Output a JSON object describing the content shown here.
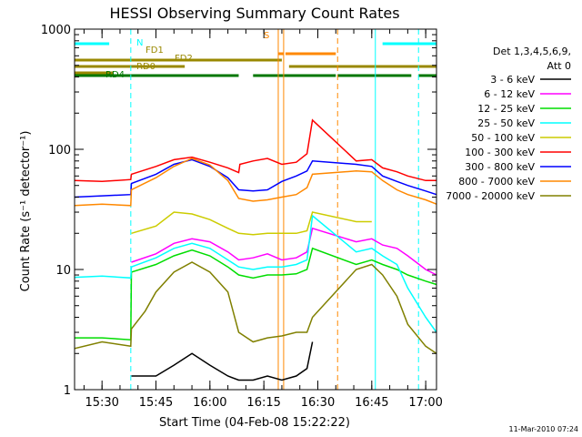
{
  "chart_data": {
    "type": "line",
    "title": "HESSI Observing Summary Count Rates",
    "xlabel": "Start Time (04-Feb-08 15:22:22)",
    "ylabel": "Count Rate (s⁻¹ detector⁻¹)",
    "ylim": [
      1,
      1000
    ],
    "yscale": "log",
    "xlim": [
      "15:22:22",
      "17:03:00"
    ],
    "x_ticks": [
      "15:30",
      "15:45",
      "16:00",
      "16:15",
      "16:30",
      "16:45",
      "17:00"
    ],
    "y_ticks": [
      "1",
      "10",
      "100",
      "1000"
    ],
    "footer_timestamp": "11-Mar-2010 07:24",
    "legend_header": [
      "Det 1,3,4,5,6,9,",
      "Att 0"
    ],
    "legend_placement": "right",
    "series": [
      {
        "name": "3 - 6 keV",
        "color": "#000000",
        "x": [
          "15:22:22",
          "15:38:00",
          "15:38:10",
          "15:45:00",
          "15:50:00",
          "15:55:00",
          "16:00:00",
          "16:05:00",
          "16:08:00",
          "16:12:00",
          "16:16:00",
          "16:20:00",
          "16:24:00",
          "16:27:00",
          "16:28:30",
          "16:40:40",
          "16:45:00",
          "16:48:00",
          "16:52:00",
          "16:55:00",
          "17:00:00",
          "17:03:00"
        ],
        "y": [
          null,
          null,
          1.3,
          1.3,
          1.6,
          2.0,
          1.6,
          1.3,
          1.2,
          1.2,
          1.3,
          1.2,
          1.3,
          1.5,
          2.5,
          null,
          null,
          null,
          null,
          null,
          null,
          null
        ]
      },
      {
        "name": "6 - 12 keV",
        "color": "#ff00ff",
        "x": [
          "15:22:22",
          "15:30:00",
          "15:38:00",
          "15:38:10",
          "15:45:00",
          "15:50:00",
          "15:55:00",
          "16:00:00",
          "16:05:00",
          "16:08:00",
          "16:12:00",
          "16:16:00",
          "16:20:00",
          "16:24:00",
          "16:27:00",
          "16:28:30",
          "16:40:40",
          "16:45:00",
          "16:48:00",
          "16:52:00",
          "16:55:00",
          "17:00:00",
          "17:03:00"
        ],
        "y": [
          null,
          null,
          null,
          11.5,
          13.5,
          16.5,
          18,
          17,
          14,
          12,
          12.5,
          13.5,
          12,
          12.5,
          14,
          22,
          17,
          18,
          16,
          15,
          13,
          10,
          9
        ]
      },
      {
        "name": "12 - 25 keV",
        "color": "#00dd00",
        "x": [
          "15:22:22",
          "15:30:00",
          "15:38:00",
          "15:38:10",
          "15:45:00",
          "15:50:00",
          "15:55:00",
          "16:00:00",
          "16:05:00",
          "16:08:00",
          "16:12:00",
          "16:16:00",
          "16:20:00",
          "16:24:00",
          "16:27:00",
          "16:28:30",
          "16:40:40",
          "16:45:00",
          "16:48:00",
          "16:52:00",
          "16:55:00",
          "17:00:00",
          "17:03:00"
        ],
        "y": [
          2.7,
          2.7,
          2.6,
          9.5,
          11,
          13,
          14.5,
          13,
          10.5,
          9,
          8.5,
          9,
          9,
          9.2,
          10,
          15,
          11,
          12,
          11,
          10,
          9,
          8,
          7.5
        ]
      },
      {
        "name": "25 - 50 keV",
        "color": "#00ffff",
        "x": [
          "15:22:22",
          "15:30:00",
          "15:38:00",
          "15:38:10",
          "15:45:00",
          "15:50:00",
          "15:55:00",
          "16:00:00",
          "16:05:00",
          "16:08:00",
          "16:12:00",
          "16:16:00",
          "16:20:00",
          "16:24:00",
          "16:27:00",
          "16:28:30",
          "16:40:40",
          "16:45:00",
          "16:48:00",
          "16:52:00",
          "16:55:00",
          "17:00:00",
          "17:03:00"
        ],
        "y": [
          8.6,
          8.8,
          8.5,
          10.5,
          12.5,
          15,
          16.5,
          15,
          12,
          10.5,
          10,
          10.5,
          10.5,
          11,
          12,
          28,
          14,
          15,
          13,
          11,
          7,
          4,
          3
        ]
      },
      {
        "name": "50 - 100 keV",
        "color": "#cccc00",
        "x": [
          "15:22:22",
          "15:30:00",
          "15:38:00",
          "15:38:10",
          "15:45:00",
          "15:50:00",
          "15:55:00",
          "16:00:00",
          "16:05:00",
          "16:08:00",
          "16:12:00",
          "16:16:00",
          "16:20:00",
          "16:24:00",
          "16:27:00",
          "16:28:30",
          "16:40:40",
          "16:45:00",
          "16:48:00",
          "16:52:00",
          "16:55:00",
          "17:00:00",
          "17:03:00"
        ],
        "y": [
          null,
          null,
          null,
          20,
          23,
          30,
          29,
          26,
          22,
          20,
          19.5,
          20,
          20,
          20,
          21,
          30,
          25,
          25,
          null,
          null,
          null,
          null,
          null
        ]
      },
      {
        "name": "100 - 300 keV",
        "color": "#ff0000",
        "x": [
          "15:22:22",
          "15:30:00",
          "15:38:00",
          "15:38:10",
          "15:45:00",
          "15:50:00",
          "15:55:00",
          "16:00:00",
          "16:05:00",
          "16:08:00",
          "16:08:20",
          "16:12:00",
          "16:16:00",
          "16:20:00",
          "16:24:00",
          "16:27:00",
          "16:28:30",
          "16:40:40",
          "16:45:00",
          "16:48:00",
          "16:52:00",
          "16:55:00",
          "17:00:00",
          "17:03:00"
        ],
        "y": [
          55,
          54,
          56,
          62,
          72,
          82,
          86,
          78,
          70,
          64,
          75,
          80,
          84,
          75,
          78,
          92,
          175,
          80,
          82,
          70,
          65,
          60,
          55,
          55
        ]
      },
      {
        "name": "300 - 800 keV",
        "color": "#0000ff",
        "x": [
          "15:22:22",
          "15:30:00",
          "15:38:00",
          "15:38:10",
          "15:45:00",
          "15:50:00",
          "15:55:00",
          "16:00:00",
          "16:05:00",
          "16:08:00",
          "16:12:00",
          "16:16:00",
          "16:20:00",
          "16:24:00",
          "16:27:00",
          "16:28:30",
          "16:40:40",
          "16:45:00",
          "16:48:00",
          "16:52:00",
          "16:55:00",
          "17:00:00",
          "17:03:00"
        ],
        "y": [
          40,
          41,
          42,
          52,
          62,
          75,
          82,
          72,
          58,
          46,
          45,
          46,
          54,
          60,
          66,
          80,
          75,
          72,
          60,
          54,
          50,
          45,
          42
        ]
      },
      {
        "name": "800 - 7000 keV",
        "color": "#ff8800",
        "x": [
          "15:22:22",
          "15:30:00",
          "15:38:00",
          "15:38:10",
          "15:45:00",
          "15:50:00",
          "15:55:00",
          "16:00:00",
          "16:05:00",
          "16:08:00",
          "16:12:00",
          "16:16:00",
          "16:20:00",
          "16:24:00",
          "16:27:00",
          "16:28:30",
          "16:40:40",
          "16:45:00",
          "16:48:00",
          "16:52:00",
          "16:55:00",
          "17:00:00",
          "17:03:00"
        ],
        "y": [
          34,
          35,
          34,
          46,
          58,
          72,
          84,
          74,
          55,
          39,
          37,
          38,
          40,
          42,
          48,
          62,
          66,
          65,
          55,
          46,
          42,
          38,
          35
        ]
      },
      {
        "name": "7000 - 20000 keV",
        "color": "#808000",
        "x": [
          "15:22:22",
          "15:30:00",
          "15:38:00",
          "15:38:10",
          "15:42:00",
          "15:45:00",
          "15:50:00",
          "15:55:00",
          "16:00:00",
          "16:05:00",
          "16:08:00",
          "16:12:00",
          "16:16:00",
          "16:20:00",
          "16:24:00",
          "16:27:00",
          "16:28:30",
          "16:40:40",
          "16:45:00",
          "16:48:00",
          "16:52:00",
          "16:55:00",
          "17:00:00",
          "17:03:00"
        ],
        "y": [
          2.2,
          2.5,
          2.3,
          3.2,
          4.5,
          6.5,
          9.5,
          11.5,
          9.5,
          6.5,
          3,
          2.5,
          2.7,
          2.8,
          3,
          3,
          4,
          10,
          11,
          9,
          6,
          3.5,
          2.3,
          2
        ]
      }
    ],
    "annotations": [
      {
        "label": "N",
        "color": "#00ffff",
        "segments": [
          [
            "15:22:22",
            "15:32:00"
          ],
          [
            "16:48:00",
            "17:03:00"
          ]
        ]
      },
      {
        "label": "S",
        "color": "#ff8800",
        "segments": [
          [
            "16:19:00",
            "16:20:30"
          ],
          [
            "16:21:00",
            "16:35:00"
          ]
        ]
      },
      {
        "label": "FD1",
        "color": "#998800",
        "segments": [
          [
            "15:22:22",
            "16:20:00"
          ]
        ]
      },
      {
        "label": "FD2",
        "color": "#998800",
        "segments": [
          [
            "15:22:22",
            "15:53:00"
          ],
          [
            "16:22:00",
            "17:03:00"
          ]
        ]
      },
      {
        "label": "RD0",
        "color": "#998800",
        "segments": [
          [
            "15:22:22",
            "15:33:00"
          ]
        ]
      },
      {
        "label": "RD4",
        "color": "#007700",
        "segments": [
          [
            "15:22:22",
            "15:38:00"
          ],
          [
            "15:38:00",
            "16:08:00"
          ],
          [
            "16:12:00",
            "16:35:00"
          ],
          [
            "16:35:30",
            "16:56:00"
          ],
          [
            "16:58:00",
            "17:03:00"
          ]
        ]
      }
    ],
    "vlines": [
      {
        "x": "15:38:00",
        "color": "#00ffff",
        "style": "dashed"
      },
      {
        "x": "16:19:00",
        "color": "#ff8800",
        "style": "solid"
      },
      {
        "x": "16:20:30",
        "color": "#ff8800",
        "style": "solid"
      },
      {
        "x": "16:35:30",
        "color": "#ff8800",
        "style": "dashed"
      },
      {
        "x": "16:46:00",
        "color": "#00ffff",
        "style": "solid"
      },
      {
        "x": "16:58:00",
        "color": "#00ffff",
        "style": "dashed"
      }
    ]
  }
}
